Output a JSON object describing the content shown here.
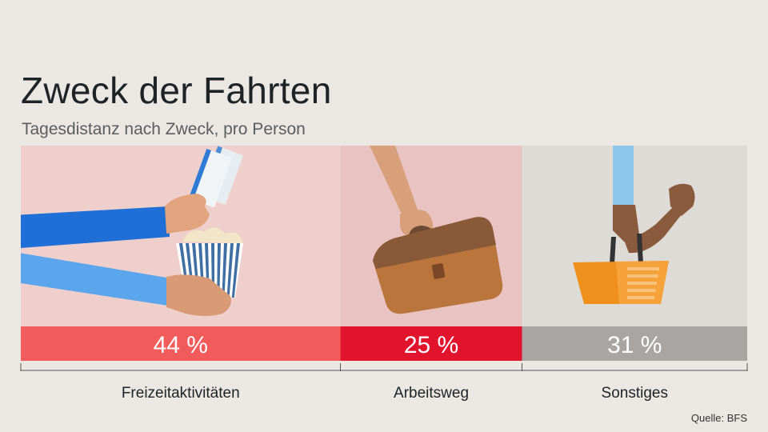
{
  "header": {
    "title": "Zweck der Fahrten",
    "subtitle": "Tagesdistanz nach Zweck, pro Person"
  },
  "footer": {
    "source": "Quelle: BFS"
  },
  "chart_data": {
    "type": "bar",
    "orientation": "stacked-horizontal-100",
    "title": "Zweck der Fahrten",
    "subtitle": "Tagesdistanz nach Zweck, pro Person",
    "categories": [
      "Freizeitaktivitäten",
      "Arbeitsweg",
      "Sonstiges"
    ],
    "values": [
      44,
      25,
      31
    ],
    "value_labels": [
      "44 %",
      "25 %",
      "31 %"
    ],
    "unit": "%",
    "colors": {
      "bars": [
        "#f25b5b",
        "#e2142d",
        "#a9a5a3"
      ],
      "panels": [
        "#efcfcb",
        "#e8c3c1",
        "#dedbd7"
      ]
    },
    "icons": [
      "hands-tickets-popcorn-icon",
      "hand-briefcase-icon",
      "hand-shopping-basket-icon"
    ],
    "xlim": [
      0,
      100
    ],
    "legend": "none",
    "grid": false
  }
}
